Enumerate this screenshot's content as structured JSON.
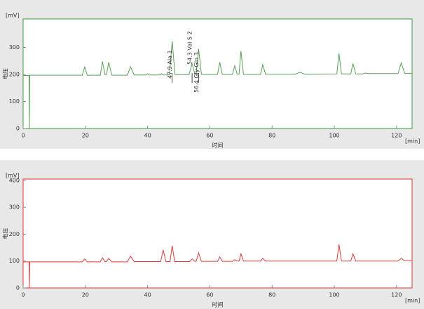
{
  "chart_data": [
    {
      "type": "line",
      "color": "#5a9e5a",
      "border_color": "#3c9a3c",
      "y_unit": "[mV]",
      "x_unit": "[min]",
      "ylabel": "电压",
      "xlabel": "时间",
      "xlim": [
        0,
        125
      ],
      "ylim": [
        0,
        405
      ],
      "xticks": [
        0,
        20,
        40,
        60,
        80,
        100,
        120
      ],
      "yticks": [
        0,
        100,
        200,
        300
      ],
      "x": [
        0,
        1.9,
        2.0,
        2.1,
        19,
        19.8,
        20.6,
        24.8,
        25.5,
        26.3,
        26.8,
        27.5,
        28.5,
        33.5,
        34.5,
        35.7,
        39.5,
        40,
        40.5,
        44,
        44.5,
        45,
        47,
        47.9,
        48.8,
        53.3,
        54.3,
        55.2,
        55.6,
        56.4,
        57.3,
        62.5,
        63.2,
        64,
        67.3,
        68,
        68.8,
        69.4,
        70,
        70.8,
        76.3,
        77,
        77.9,
        87.5,
        89,
        90.5,
        100.8,
        101.5,
        102.3,
        105.3,
        106,
        106.9,
        109,
        110,
        111,
        120.5,
        121.5,
        122.6,
        125
      ],
      "values": [
        196,
        196,
        0,
        197,
        197,
        228,
        197,
        197,
        248,
        199,
        199,
        245,
        197,
        197,
        228,
        198,
        198,
        203,
        198,
        198,
        203,
        198,
        198,
        323,
        199,
        199,
        240,
        201,
        201,
        295,
        200,
        200,
        245,
        200,
        200,
        232,
        201,
        201,
        287,
        200,
        200,
        236,
        201,
        201,
        208,
        201,
        202,
        278,
        202,
        202,
        240,
        202,
        202,
        205,
        203,
        203,
        243,
        204,
        204
      ],
      "annotations": [
        {
          "text": "47.9 Ala   1",
          "x": 47.9
        },
        {
          "text": "54.3 Val  S 2",
          "x": 54.3
        },
        {
          "text": "56.4 Gly-Gln   3",
          "x": 56.4
        }
      ]
    },
    {
      "type": "line",
      "color": "#e03a3a",
      "border_color": "#e03030",
      "y_unit": "[mV]",
      "x_unit": "[min]",
      "ylabel": "电压",
      "xlabel": "时间",
      "xlim": [
        0,
        125
      ],
      "ylim": [
        0,
        405
      ],
      "xticks": [
        0,
        20,
        40,
        60,
        80,
        100,
        120
      ],
      "yticks": [
        0,
        100,
        200,
        300,
        400
      ],
      "x": [
        0,
        1.9,
        2.0,
        2.1,
        19,
        19.8,
        20.6,
        24.8,
        25.5,
        26.3,
        26.8,
        27.5,
        28.5,
        33.5,
        34.5,
        35.7,
        44.2,
        45,
        45.9,
        47.2,
        47.9,
        48.7,
        53.5,
        54.3,
        55.2,
        55.6,
        56.4,
        57.3,
        62.5,
        63.2,
        64,
        67.3,
        68,
        68.8,
        69.4,
        70,
        70.8,
        76.3,
        77,
        77.9,
        100.8,
        101.5,
        102.3,
        105.3,
        106,
        106.9,
        120.5,
        121.5,
        122.6,
        125
      ],
      "values": [
        97,
        97,
        0,
        97,
        97,
        108,
        97,
        97,
        112,
        98,
        98,
        110,
        97,
        97,
        118,
        98,
        98,
        142,
        98,
        98,
        157,
        98,
        98,
        108,
        99,
        99,
        130,
        99,
        99,
        115,
        99,
        99,
        105,
        100,
        100,
        127,
        100,
        100,
        110,
        100,
        100,
        162,
        100,
        100,
        127,
        100,
        100,
        110,
        101,
        101
      ]
    }
  ]
}
